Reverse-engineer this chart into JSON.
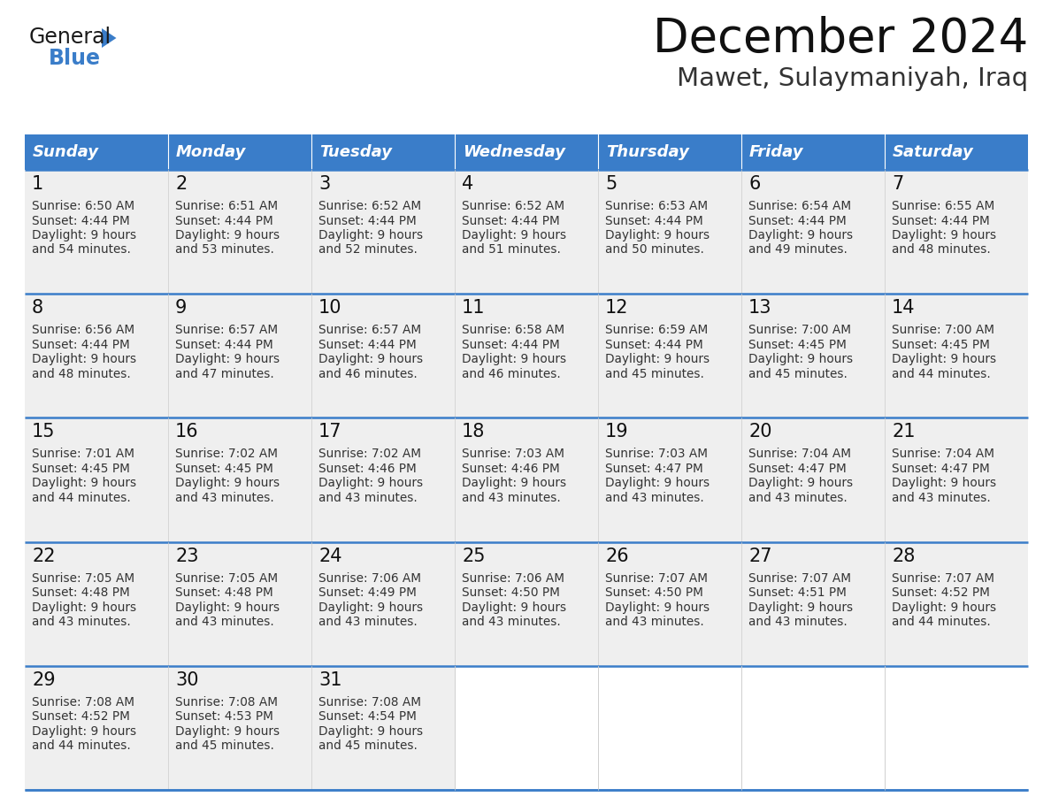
{
  "title": "December 2024",
  "subtitle": "Mawet, Sulaymaniyah, Iraq",
  "days_of_week": [
    "Sunday",
    "Monday",
    "Tuesday",
    "Wednesday",
    "Thursday",
    "Friday",
    "Saturday"
  ],
  "header_bg": "#3A7DC9",
  "header_text": "#FFFFFF",
  "cell_bg": "#EFEFEF",
  "cell_bg_white": "#FFFFFF",
  "day_num_color": "#111111",
  "text_color": "#333333",
  "border_color": "#3A7DC9",
  "logo_general_color": "#1a1a1a",
  "logo_blue_color": "#3A7DC9",
  "fig_width": 11.88,
  "fig_height": 9.18,
  "dpi": 100,
  "calendar": [
    [
      {
        "day": 1,
        "sunrise": "6:50 AM",
        "sunset": "4:44 PM",
        "daylight_suffix": "and 54 minutes."
      },
      {
        "day": 2,
        "sunrise": "6:51 AM",
        "sunset": "4:44 PM",
        "daylight_suffix": "and 53 minutes."
      },
      {
        "day": 3,
        "sunrise": "6:52 AM",
        "sunset": "4:44 PM",
        "daylight_suffix": "and 52 minutes."
      },
      {
        "day": 4,
        "sunrise": "6:52 AM",
        "sunset": "4:44 PM",
        "daylight_suffix": "and 51 minutes."
      },
      {
        "day": 5,
        "sunrise": "6:53 AM",
        "sunset": "4:44 PM",
        "daylight_suffix": "and 50 minutes."
      },
      {
        "day": 6,
        "sunrise": "6:54 AM",
        "sunset": "4:44 PM",
        "daylight_suffix": "and 49 minutes."
      },
      {
        "day": 7,
        "sunrise": "6:55 AM",
        "sunset": "4:44 PM",
        "daylight_suffix": "and 48 minutes."
      }
    ],
    [
      {
        "day": 8,
        "sunrise": "6:56 AM",
        "sunset": "4:44 PM",
        "daylight_suffix": "and 48 minutes."
      },
      {
        "day": 9,
        "sunrise": "6:57 AM",
        "sunset": "4:44 PM",
        "daylight_suffix": "and 47 minutes."
      },
      {
        "day": 10,
        "sunrise": "6:57 AM",
        "sunset": "4:44 PM",
        "daylight_suffix": "and 46 minutes."
      },
      {
        "day": 11,
        "sunrise": "6:58 AM",
        "sunset": "4:44 PM",
        "daylight_suffix": "and 46 minutes."
      },
      {
        "day": 12,
        "sunrise": "6:59 AM",
        "sunset": "4:44 PM",
        "daylight_suffix": "and 45 minutes."
      },
      {
        "day": 13,
        "sunrise": "7:00 AM",
        "sunset": "4:45 PM",
        "daylight_suffix": "and 45 minutes."
      },
      {
        "day": 14,
        "sunrise": "7:00 AM",
        "sunset": "4:45 PM",
        "daylight_suffix": "and 44 minutes."
      }
    ],
    [
      {
        "day": 15,
        "sunrise": "7:01 AM",
        "sunset": "4:45 PM",
        "daylight_suffix": "and 44 minutes."
      },
      {
        "day": 16,
        "sunrise": "7:02 AM",
        "sunset": "4:45 PM",
        "daylight_suffix": "and 43 minutes."
      },
      {
        "day": 17,
        "sunrise": "7:02 AM",
        "sunset": "4:46 PM",
        "daylight_suffix": "and 43 minutes."
      },
      {
        "day": 18,
        "sunrise": "7:03 AM",
        "sunset": "4:46 PM",
        "daylight_suffix": "and 43 minutes."
      },
      {
        "day": 19,
        "sunrise": "7:03 AM",
        "sunset": "4:47 PM",
        "daylight_suffix": "and 43 minutes."
      },
      {
        "day": 20,
        "sunrise": "7:04 AM",
        "sunset": "4:47 PM",
        "daylight_suffix": "and 43 minutes."
      },
      {
        "day": 21,
        "sunrise": "7:04 AM",
        "sunset": "4:47 PM",
        "daylight_suffix": "and 43 minutes."
      }
    ],
    [
      {
        "day": 22,
        "sunrise": "7:05 AM",
        "sunset": "4:48 PM",
        "daylight_suffix": "and 43 minutes."
      },
      {
        "day": 23,
        "sunrise": "7:05 AM",
        "sunset": "4:48 PM",
        "daylight_suffix": "and 43 minutes."
      },
      {
        "day": 24,
        "sunrise": "7:06 AM",
        "sunset": "4:49 PM",
        "daylight_suffix": "and 43 minutes."
      },
      {
        "day": 25,
        "sunrise": "7:06 AM",
        "sunset": "4:50 PM",
        "daylight_suffix": "and 43 minutes."
      },
      {
        "day": 26,
        "sunrise": "7:07 AM",
        "sunset": "4:50 PM",
        "daylight_suffix": "and 43 minutes."
      },
      {
        "day": 27,
        "sunrise": "7:07 AM",
        "sunset": "4:51 PM",
        "daylight_suffix": "and 43 minutes."
      },
      {
        "day": 28,
        "sunrise": "7:07 AM",
        "sunset": "4:52 PM",
        "daylight_suffix": "and 44 minutes."
      }
    ],
    [
      {
        "day": 29,
        "sunrise": "7:08 AM",
        "sunset": "4:52 PM",
        "daylight_suffix": "and 44 minutes."
      },
      {
        "day": 30,
        "sunrise": "7:08 AM",
        "sunset": "4:53 PM",
        "daylight_suffix": "and 45 minutes."
      },
      {
        "day": 31,
        "sunrise": "7:08 AM",
        "sunset": "4:54 PM",
        "daylight_suffix": "and 45 minutes."
      },
      null,
      null,
      null,
      null
    ]
  ]
}
